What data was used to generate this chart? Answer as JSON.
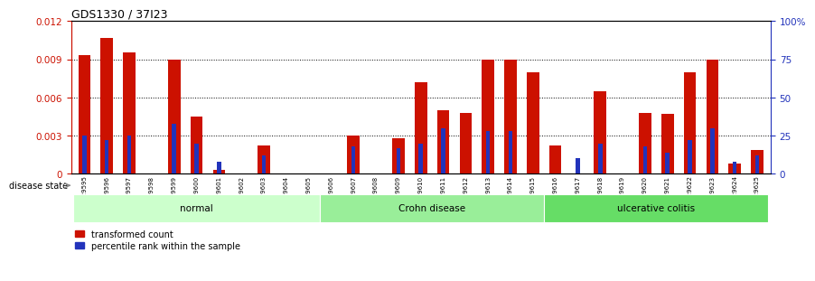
{
  "title": "GDS1330 / 37I23",
  "samples": [
    "GSM29595",
    "GSM29596",
    "GSM29597",
    "GSM29598",
    "GSM29599",
    "GSM29600",
    "GSM29601",
    "GSM29602",
    "GSM29603",
    "GSM29604",
    "GSM29605",
    "GSM29606",
    "GSM29607",
    "GSM29608",
    "GSM29609",
    "GSM29610",
    "GSM29611",
    "GSM29612",
    "GSM29613",
    "GSM29614",
    "GSM29615",
    "GSM29616",
    "GSM29617",
    "GSM29618",
    "GSM29619",
    "GSM29620",
    "GSM29621",
    "GSM29622",
    "GSM29623",
    "GSM29624",
    "GSM29625"
  ],
  "transformed_count": [
    0.0093,
    0.0107,
    0.0095,
    0.0,
    0.009,
    0.0045,
    0.0003,
    0.0,
    0.0022,
    0.0,
    0.0,
    0.0,
    0.003,
    0.0,
    0.0028,
    0.0072,
    0.005,
    0.0048,
    0.009,
    0.009,
    0.008,
    0.0022,
    0.0,
    0.0065,
    0.0,
    0.0048,
    0.0047,
    0.008,
    0.009,
    0.0008,
    0.0019
  ],
  "percentile_rank": [
    25,
    22,
    25,
    0,
    33,
    20,
    8,
    0,
    12,
    0,
    0,
    0,
    18,
    0,
    17,
    20,
    30,
    0,
    28,
    28,
    0,
    0,
    10,
    20,
    0,
    18,
    14,
    22,
    30,
    8,
    12
  ],
  "groups": [
    {
      "label": "normal",
      "start": 0,
      "end": 10,
      "color": "#ccffcc"
    },
    {
      "label": "Crohn disease",
      "start": 11,
      "end": 20,
      "color": "#99ee99"
    },
    {
      "label": "ulcerative colitis",
      "start": 21,
      "end": 30,
      "color": "#66dd66"
    }
  ],
  "bar_color_red": "#cc1100",
  "bar_color_blue": "#2233bb",
  "ylim_left": [
    0,
    0.012
  ],
  "ylim_right": [
    0,
    100
  ],
  "yticks_left": [
    0,
    0.003,
    0.006,
    0.009,
    0.012
  ],
  "yticks_right": [
    0,
    25,
    50,
    75,
    100
  ],
  "bar_width": 0.55,
  "blue_bar_width": 0.18,
  "disease_state_label": "disease state"
}
